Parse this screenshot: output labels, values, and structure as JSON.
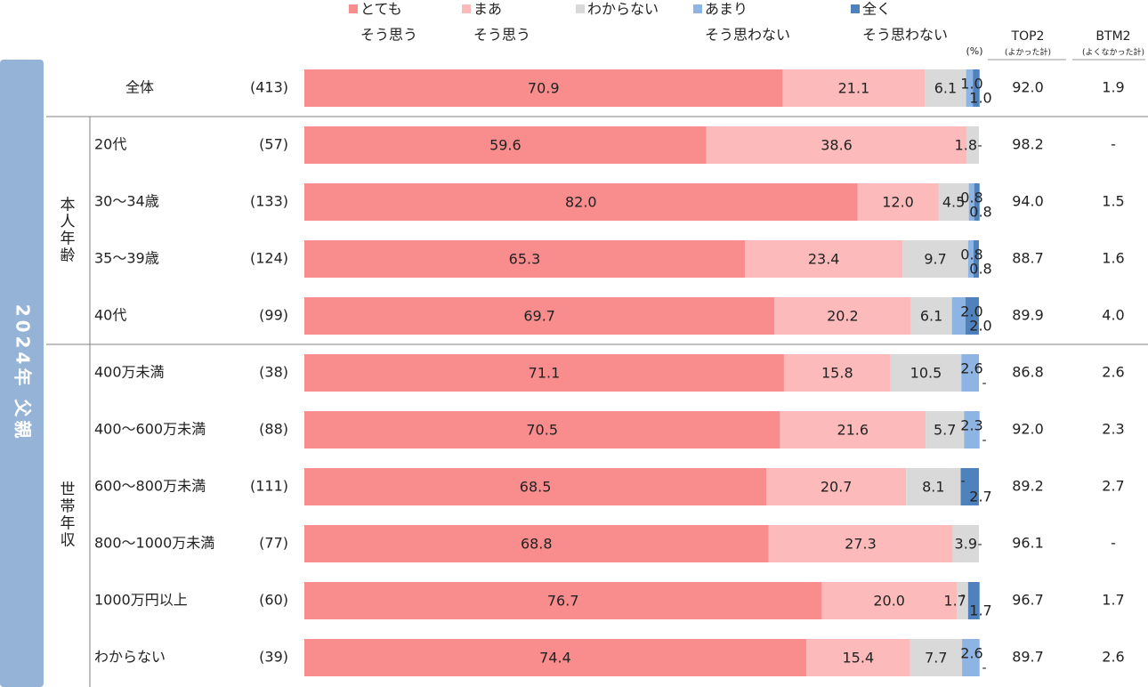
{
  "legend": [
    {
      "line1": "とても",
      "line2": "そう思う",
      "color": "#F98C8C"
    },
    {
      "line1": "まあ",
      "line2": "そう思う",
      "color": "#FDBABA"
    },
    {
      "line1": "わからない",
      "line2": "",
      "color": "#D9D9D9"
    },
    {
      "line1": "あまり",
      "line2": "そう思わない",
      "color": "#8EB4E3"
    },
    {
      "line1": "全く",
      "line2": "そう思わない",
      "color": "#4F81BD"
    }
  ],
  "unit_label": "(%)",
  "side_label": "2024年 父親",
  "group_labels": [
    "本人年齢",
    "世帯年収"
  ],
  "summary_headers": {
    "top2": "TOP2",
    "top2_sub": "(よかった計)",
    "btm2": "BTM2",
    "btm2_sub": "(よくなかった計)"
  },
  "chart_data": {
    "type": "bar",
    "orientation": "horizontal",
    "stacked": true,
    "unit": "%",
    "xlim": [
      0,
      100
    ],
    "categories": [
      "全体",
      "20代",
      "30～34歳",
      "35～39歳",
      "40代",
      "400万未満",
      "400～600万未満",
      "600～800万未満",
      "800～1000万未満",
      "1000万円以上",
      "わからない"
    ],
    "n": [
      "(413)",
      "(57)",
      "(133)",
      "(124)",
      "(99)",
      "(38)",
      "(88)",
      "(111)",
      "(77)",
      "(60)",
      "(39)"
    ],
    "groups": [
      {
        "label": "",
        "rows": [
          0
        ]
      },
      {
        "label": "本人年齢",
        "rows": [
          1,
          2,
          3,
          4
        ]
      },
      {
        "label": "世帯年収",
        "rows": [
          5,
          6,
          7,
          8,
          9,
          10
        ]
      }
    ],
    "series": [
      {
        "name": "とてもそう思う",
        "color": "#F98C8C",
        "values": [
          70.9,
          59.6,
          82.0,
          65.3,
          69.7,
          71.1,
          70.5,
          68.5,
          68.8,
          76.7,
          74.4
        ]
      },
      {
        "name": "まあそう思う",
        "color": "#FDBABA",
        "values": [
          21.1,
          38.6,
          12.0,
          23.4,
          20.2,
          15.8,
          21.6,
          20.7,
          27.3,
          20.0,
          15.4
        ]
      },
      {
        "name": "わからない",
        "color": "#D9D9D9",
        "values": [
          6.1,
          1.8,
          4.5,
          9.7,
          6.1,
          10.5,
          5.7,
          8.1,
          3.9,
          1.7,
          7.7
        ]
      },
      {
        "name": "あまりそう思わない",
        "color": "#8EB4E3",
        "values": [
          1.0,
          null,
          0.8,
          0.8,
          2.0,
          2.6,
          2.3,
          null,
          null,
          null,
          2.6
        ]
      },
      {
        "name": "全くそう思わない",
        "color": "#4F81BD",
        "values": [
          1.0,
          null,
          0.8,
          0.8,
          2.0,
          null,
          null,
          2.7,
          null,
          1.7,
          null
        ]
      }
    ],
    "top2": [
      "92.0",
      "98.2",
      "94.0",
      "88.7",
      "89.9",
      "86.8",
      "92.0",
      "89.2",
      "96.1",
      "96.7",
      "89.7"
    ],
    "btm2": [
      "1.9",
      "-",
      "1.5",
      "1.6",
      "4.0",
      "2.6",
      "2.3",
      "2.7",
      "-",
      "1.7",
      "2.6"
    ]
  }
}
